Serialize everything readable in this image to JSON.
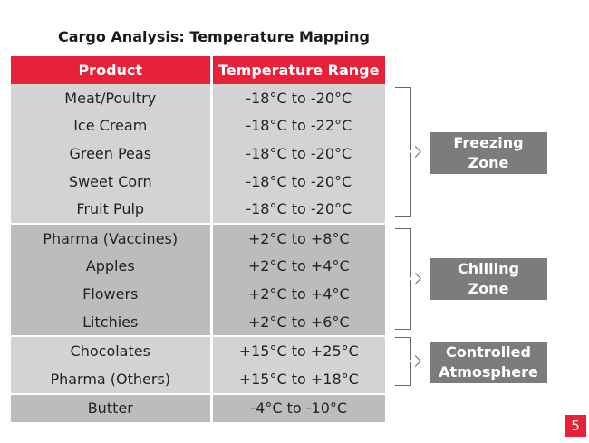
{
  "title": "Cargo Analysis: Temperature Mapping",
  "table": {
    "headers": [
      "Product",
      "Temperature Range"
    ],
    "rows": [
      {
        "product": "Meat/Poultry",
        "range": "-18°C to -20°C"
      },
      {
        "product": "Ice Cream",
        "range": "-18°C to -22°C"
      },
      {
        "product": "Green Peas",
        "range": "-18°C to -20°C"
      },
      {
        "product": "Sweet Corn",
        "range": "-18°C to -20°C"
      },
      {
        "product": "Fruit Pulp",
        "range": "-18°C to -20°C"
      },
      {
        "product": "Pharma (Vaccines)",
        "range": "+2°C to +8°C"
      },
      {
        "product": "Apples",
        "range": "+2°C to +4°C"
      },
      {
        "product": "Flowers",
        "range": "+2°C to +4°C"
      },
      {
        "product": "Litchies",
        "range": "+2°C to +6°C"
      },
      {
        "product": "Chocolates",
        "range": "+15°C to +25°C"
      },
      {
        "product": "Pharma (Others)",
        "range": "+15°C to +18°C"
      },
      {
        "product": "Butter",
        "range": "-4°C to -10°C"
      }
    ]
  },
  "zones": {
    "freezing": {
      "line1": "Freezing",
      "line2": "Zone"
    },
    "chilling": {
      "line1": "Chilling",
      "line2": "Zone"
    },
    "controlled": {
      "line1": "Controlled",
      "line2": "Atmosphere"
    }
  },
  "page_number": "5",
  "colors": {
    "header": "#e8213b",
    "row_light": "#d3d3d5",
    "row_dark": "#bcbcbe",
    "zone_box": "#7c7c7c"
  }
}
